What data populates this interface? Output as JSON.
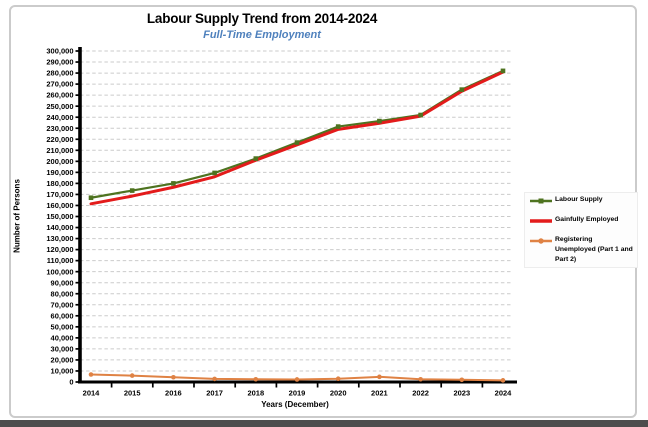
{
  "colors": {
    "subtitle": "#4f81bd",
    "axis": "#000000",
    "gridline": "#cbcbcb",
    "frame_border": "#cbcbcb",
    "bottom_bar": "#4d4d4d"
  },
  "chart_data": {
    "type": "line",
    "title": "Labour Supply Trend from 2014-2024",
    "subtitle": "Full-Time Employment",
    "xlabel": "Years (December)",
    "ylabel": "Number of Persons",
    "x": [
      2014,
      2015,
      2016,
      2017,
      2018,
      2019,
      2020,
      2021,
      2022,
      2023,
      2024
    ],
    "series": [
      {
        "name": "Labour Supply",
        "color": "#4e7320",
        "marker": "square",
        "values": [
          167000,
          173500,
          180000,
          189500,
          202500,
          217000,
          231500,
          236500,
          242000,
          265000,
          282000
        ]
      },
      {
        "name": "Gainfully Employed",
        "color": "#e31b1b",
        "marker": "none",
        "values": [
          161500,
          168500,
          176500,
          186000,
          201000,
          215000,
          229000,
          234500,
          241000,
          263500,
          281000
        ]
      },
      {
        "name": "Registering Unemployed (Part 1 and Part 2)",
        "color": "#df8244",
        "marker": "circle",
        "values": [
          6800,
          5800,
          4300,
          2800,
          2500,
          2300,
          3000,
          4700,
          2500,
          2000,
          1500
        ]
      }
    ],
    "ylim": [
      0,
      300000
    ],
    "ytick_interval": 10000,
    "grid": "horizontal-dashed",
    "legend_position": "right"
  }
}
